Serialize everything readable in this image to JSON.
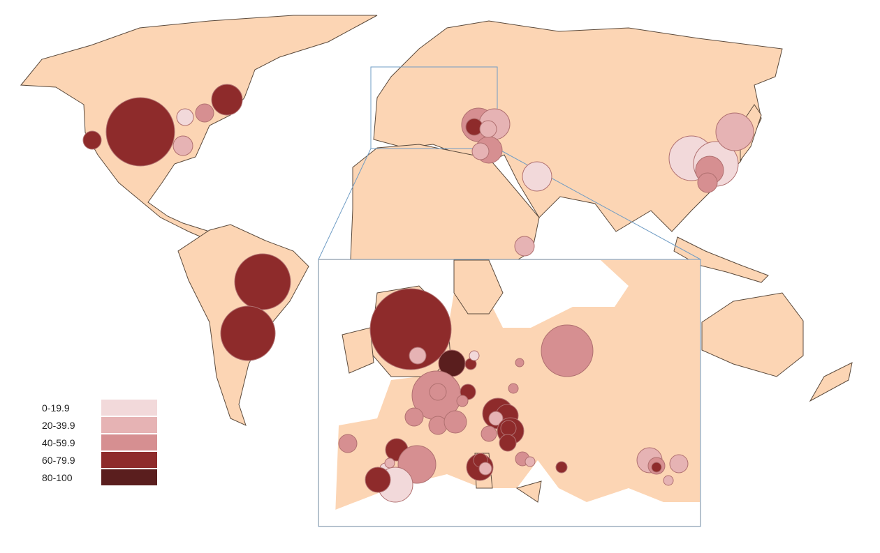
{
  "legend": {
    "items": [
      {
        "label": "0-19.9",
        "color": "#f2d9da"
      },
      {
        "label": "20-39.9",
        "color": "#e6b3b4"
      },
      {
        "label": "40-59.9",
        "color": "#d68f91"
      },
      {
        "label": "60-79.9",
        "color": "#8e2b2b"
      },
      {
        "label": "80-100",
        "color": "#5a1e1e"
      }
    ]
  },
  "colors": {
    "land": "#fcd5b4",
    "border": "#5b4a3c",
    "inset_frame": "#6f9cc4"
  }
}
